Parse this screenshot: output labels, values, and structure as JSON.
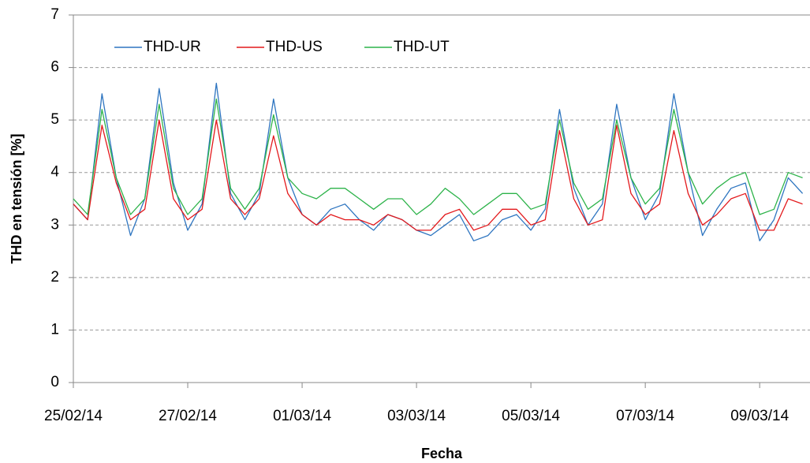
{
  "chart_data": {
    "type": "line",
    "xlabel": "Fecha",
    "ylabel": "THD en tensión [%]",
    "x": [
      0,
      0.25,
      0.5,
      0.75,
      1,
      1.25,
      1.5,
      1.75,
      2,
      2.25,
      2.5,
      2.75,
      3,
      3.25,
      3.5,
      3.75,
      4,
      4.25,
      4.5,
      4.75,
      5,
      5.25,
      5.5,
      5.75,
      6,
      6.25,
      6.5,
      6.75,
      7,
      7.25,
      7.5,
      7.75,
      8,
      8.25,
      8.5,
      8.75,
      9,
      9.25,
      9.5,
      9.75,
      10,
      10.25,
      10.5,
      10.75,
      11,
      11.25,
      11.5,
      11.75,
      12,
      12.25,
      12.5,
      12.75
    ],
    "series": [
      {
        "name": "THD-UR",
        "color": "#2e75c0",
        "values": [
          3.4,
          3.1,
          5.5,
          3.9,
          2.8,
          3.5,
          5.6,
          3.8,
          2.9,
          3.4,
          5.7,
          3.6,
          3.1,
          3.6,
          5.4,
          3.9,
          3.2,
          3.0,
          3.3,
          3.4,
          3.1,
          2.9,
          3.2,
          3.1,
          2.9,
          2.8,
          3.0,
          3.2,
          2.7,
          2.8,
          3.1,
          3.2,
          2.9,
          3.3,
          5.2,
          3.7,
          3.0,
          3.4,
          5.3,
          3.9,
          3.1,
          3.6,
          5.5,
          4.0,
          2.8,
          3.3,
          3.7,
          3.8,
          2.7,
          3.1,
          3.9,
          3.6
        ]
      },
      {
        "name": "THD-US",
        "color": "#e3191c",
        "values": [
          3.4,
          3.1,
          4.9,
          3.8,
          3.1,
          3.3,
          5.0,
          3.5,
          3.1,
          3.3,
          5.0,
          3.5,
          3.2,
          3.5,
          4.7,
          3.6,
          3.2,
          3.0,
          3.2,
          3.1,
          3.1,
          3.0,
          3.2,
          3.1,
          2.9,
          2.9,
          3.2,
          3.3,
          2.9,
          3.0,
          3.3,
          3.3,
          3.0,
          3.1,
          4.8,
          3.5,
          3.0,
          3.1,
          4.9,
          3.6,
          3.2,
          3.4,
          4.8,
          3.6,
          3.0,
          3.2,
          3.5,
          3.6,
          2.9,
          2.9,
          3.5,
          3.4
        ]
      },
      {
        "name": "THD-UT",
        "color": "#2db34a",
        "values": [
          3.5,
          3.2,
          5.2,
          3.9,
          3.2,
          3.5,
          5.3,
          3.7,
          3.2,
          3.5,
          5.4,
          3.7,
          3.3,
          3.7,
          5.1,
          3.9,
          3.6,
          3.5,
          3.7,
          3.7,
          3.5,
          3.3,
          3.5,
          3.5,
          3.2,
          3.4,
          3.7,
          3.5,
          3.2,
          3.4,
          3.6,
          3.6,
          3.3,
          3.4,
          5.0,
          3.8,
          3.3,
          3.5,
          5.0,
          3.9,
          3.4,
          3.7,
          5.2,
          4.0,
          3.4,
          3.7,
          3.9,
          4.0,
          3.2,
          3.3,
          4.0,
          3.9
        ]
      }
    ],
    "xlim": [
      0,
      12.88
    ],
    "xticks": [
      {
        "value": 0,
        "label": "25/02/14"
      },
      {
        "value": 2,
        "label": "27/02/14"
      },
      {
        "value": 4,
        "label": "01/03/14"
      },
      {
        "value": 6,
        "label": "03/03/14"
      },
      {
        "value": 8,
        "label": "05/03/14"
      },
      {
        "value": 10,
        "label": "07/03/14"
      },
      {
        "value": 12,
        "label": "09/03/14"
      }
    ],
    "ylim": [
      0,
      7
    ],
    "yticks": [
      0,
      1,
      2,
      3,
      4,
      5,
      6,
      7
    ],
    "grid": true,
    "legend": "top-left"
  }
}
